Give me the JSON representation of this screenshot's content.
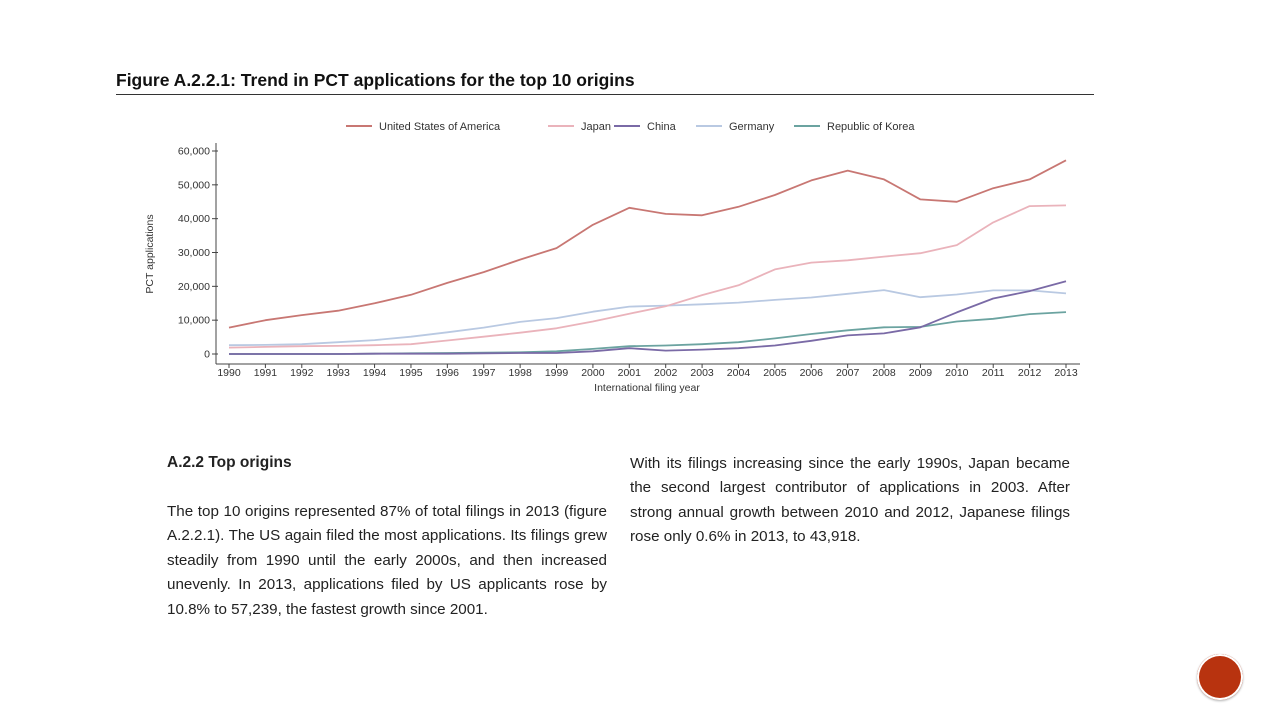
{
  "figure": {
    "title": "Figure A.2.2.1: Trend in PCT applications for the top 10 origins"
  },
  "chart_data": {
    "type": "line",
    "xlabel": "International filing year",
    "ylabel": "PCT applications",
    "ylim": [
      0,
      60000
    ],
    "yticks": [
      0,
      10000,
      20000,
      30000,
      40000,
      50000,
      60000
    ],
    "ytick_labels": [
      "0",
      "10,000",
      "20,000",
      "30,000",
      "40,000",
      "50,000",
      "60,000"
    ],
    "legend_position": "top",
    "grid": false,
    "x": [
      "1990",
      "1991",
      "1992",
      "1993",
      "1994",
      "1995",
      "1996",
      "1997",
      "1998",
      "1999",
      "2000",
      "2001",
      "2002",
      "2003",
      "2004",
      "2005",
      "2006",
      "2007",
      "2008",
      "2009",
      "2010",
      "2011",
      "2012",
      "2013"
    ],
    "series": [
      {
        "name": "United States of America",
        "color": "#c87773",
        "values": [
          7800,
          10000,
          11500,
          12800,
          15000,
          17500,
          21000,
          24200,
          27900,
          31300,
          38200,
          43200,
          41400,
          41000,
          43500,
          47000,
          51300,
          54200,
          51600,
          45700,
          45000,
          49000,
          51600,
          57239
        ]
      },
      {
        "name": "Japan",
        "color": "#eab3bb",
        "values": [
          1900,
          2100,
          2300,
          2400,
          2600,
          2900,
          4000,
          5100,
          6300,
          7600,
          9600,
          11900,
          14100,
          17400,
          20300,
          25000,
          27000,
          27700,
          28800,
          29800,
          32200,
          38900,
          43700,
          43918
        ]
      },
      {
        "name": "China",
        "color": "#7a6aa6",
        "values": [
          0,
          0,
          0,
          0,
          100,
          100,
          100,
          200,
          300,
          300,
          800,
          1700,
          1000,
          1300,
          1700,
          2500,
          3900,
          5500,
          6100,
          7900,
          12300,
          16400,
          18600,
          21500
        ]
      },
      {
        "name": "Germany",
        "color": "#b9c9e2",
        "values": [
          2600,
          2700,
          2900,
          3500,
          4100,
          5100,
          6400,
          7800,
          9500,
          10600,
          12500,
          14000,
          14300,
          14700,
          15200,
          16000,
          16700,
          17800,
          18900,
          16800,
          17600,
          18800,
          18800,
          17900
        ]
      },
      {
        "name": "Republic of Korea",
        "color": "#6ba3a0",
        "values": [
          0,
          0,
          0,
          0,
          100,
          200,
          300,
          400,
          500,
          800,
          1500,
          2300,
          2500,
          2900,
          3500,
          4600,
          5900,
          7000,
          7900,
          8000,
          9600,
          10400,
          11800,
          12386
        ]
      }
    ]
  },
  "section": {
    "heading": "A.2.2 Top origins",
    "para_left": "The top 10 origins represented 87% of total filings in 2013 (figure A.2.2.1). The US again filed the most applications. Its filings grew steadily from 1990 until the early 2000s, and then increased unevenly. In 2013, applications filed by US applicants rose by 10.8% to 57,239, the fastest growth since 2001.",
    "para_right": "With its filings increasing since the early 1990s, Japan became the second largest contributor of applications in 2003. After strong annual growth between 2010 and 2012, Japanese filings rose only 0.6% in 2013, to 43,918."
  },
  "nav": {
    "icon": "circle-button-icon",
    "color": "#b8330f"
  }
}
